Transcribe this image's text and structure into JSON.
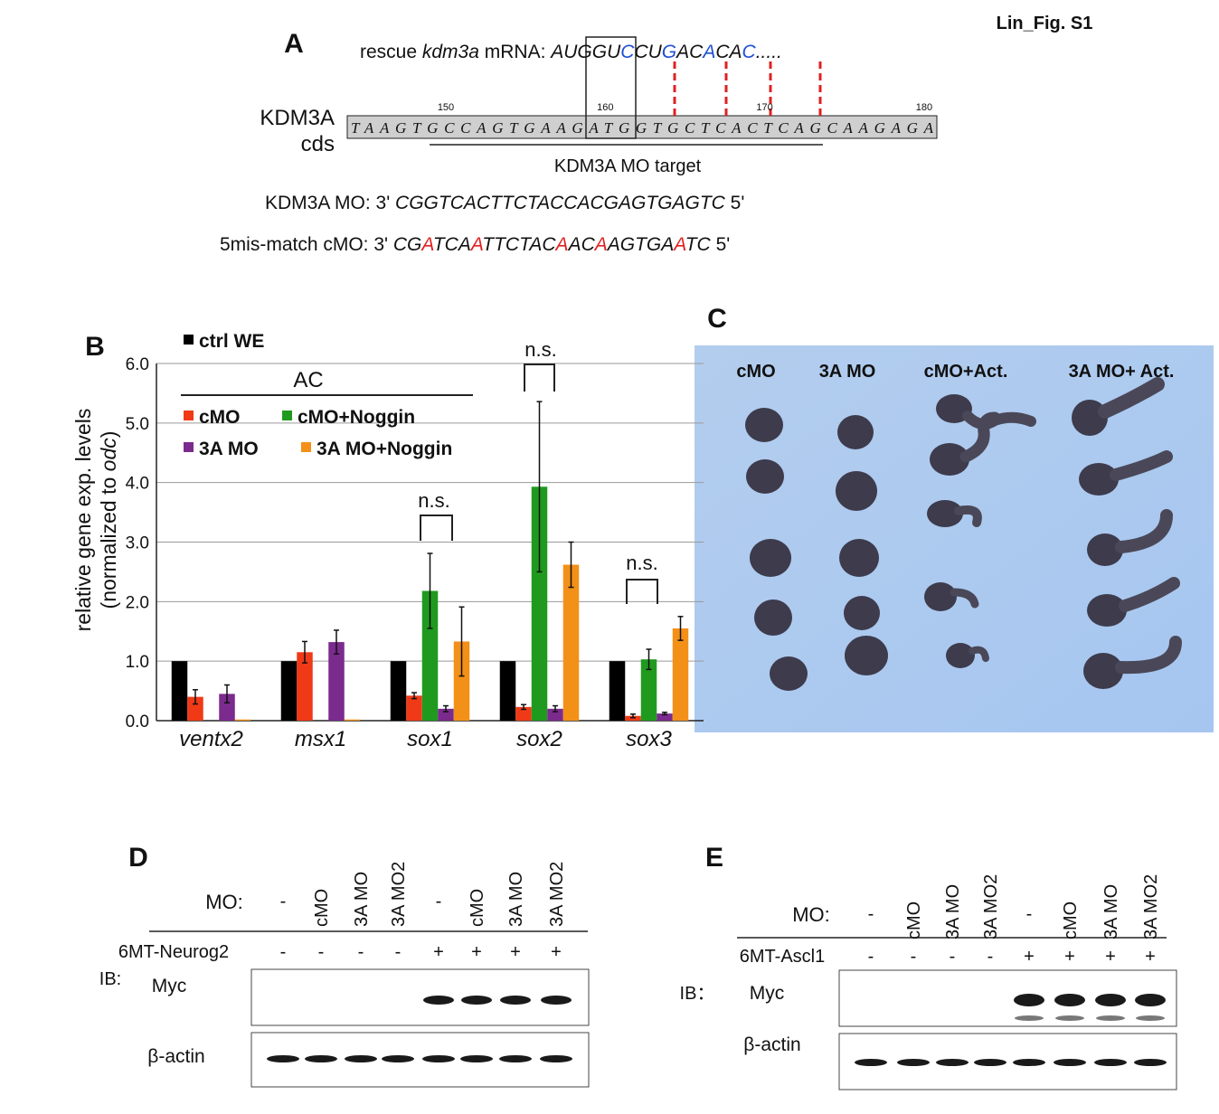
{
  "header": {
    "figure_label": "Lin_Fig. S1"
  },
  "panel_a": {
    "label": "A",
    "mrna_label": [
      "rescue ",
      "kdm3a",
      " mRNA: "
    ],
    "mrna_sequence": [
      {
        "text": "AUGGU"
      },
      {
        "text": "C",
        "color": "#1f4fd6"
      },
      {
        "text": "CU"
      },
      {
        "text": "G",
        "color": "#1f4fd6"
      },
      {
        "text": "AC"
      },
      {
        "text": "A",
        "color": "#1f4fd6"
      },
      {
        "text": "CA"
      },
      {
        "text": "C",
        "color": "#1f4fd6"
      },
      {
        "text": "....."
      }
    ],
    "cds_label": [
      "KDM3A",
      "cds"
    ],
    "cds_sequence": "TAAGTGCCAGTGAAGATGGTGCTCACTCAGCAAGAGA",
    "positions": [
      150,
      160,
      170,
      180
    ],
    "mo_target": "KDM3A MO target",
    "mo_line": {
      "label": "KDM3A MO: 3' ",
      "sequence": [
        {
          "text": "CGGTCACTTCTACCACGAGTGAGTC"
        }
      ],
      "end": " 5'"
    },
    "cmo_line": {
      "label": "5mis-match cMO: 3' ",
      "sequence": [
        {
          "text": "CG"
        },
        {
          "text": "A",
          "color": "#e02020"
        },
        {
          "text": "TCA"
        },
        {
          "text": "A",
          "color": "#e02020"
        },
        {
          "text": "TTCTAC"
        },
        {
          "text": "A",
          "color": "#e02020"
        },
        {
          "text": "AC"
        },
        {
          "text": "A",
          "color": "#e02020"
        },
        {
          "text": "AGTGA"
        },
        {
          "text": "A",
          "color": "#e02020"
        },
        {
          "text": "TC"
        }
      ],
      "end": " 5'"
    }
  },
  "chart_data": {
    "type": "bar",
    "panel_label": "B",
    "y_label": {
      "line1": "relative gene exp. levels",
      "line2": [
        "(normalized to ",
        "odc",
        ")"
      ]
    },
    "categories": [
      "ventx2",
      "msx1",
      "sox1",
      "sox2",
      "sox3"
    ],
    "series": [
      {
        "name": "ctrl WE",
        "color": "#000000",
        "values": [
          1,
          1,
          1,
          1,
          1
        ]
      },
      {
        "name": "cMO",
        "color": "#f03a17",
        "values": [
          0.4,
          1.15,
          0.42,
          0.23,
          0.08
        ],
        "errors": [
          0.12,
          0.18,
          0.05,
          0.04,
          0.03
        ]
      },
      {
        "name": "cMO+Noggin",
        "color": "#1f9a1f",
        "values": [
          0,
          0,
          2.18,
          3.93,
          1.03
        ],
        "errors": [
          null,
          null,
          0.63,
          1.43,
          0.17
        ]
      },
      {
        "name": "3A MO",
        "color": "#7b2a8e",
        "values": [
          0.45,
          1.32,
          0.2,
          0.2,
          0.12
        ],
        "errors": [
          0.15,
          0.2,
          0.05,
          0.05,
          0.02
        ]
      },
      {
        "name": "3A MO+Noggin",
        "color": "#f39018",
        "values": [
          0.02,
          0.02,
          1.33,
          2.62,
          1.55
        ],
        "errors": [
          null,
          null,
          0.58,
          0.38,
          0.2
        ]
      }
    ],
    "ylim": [
      0,
      6
    ],
    "yticks": [
      {
        "value": 0,
        "label": "0.0"
      },
      {
        "value": 1,
        "label": "1.0"
      },
      {
        "value": 2,
        "label": "2.0"
      },
      {
        "value": 3,
        "label": "3.0"
      },
      {
        "value": 4,
        "label": "4.0"
      },
      {
        "value": 5,
        "label": "5.0"
      },
      {
        "value": 6,
        "label": "6.0"
      }
    ],
    "grid": true,
    "annotations": [
      "AC",
      "n.s.",
      "n.s.",
      "n.s."
    ]
  },
  "panel_c": {
    "label": "C",
    "columns": [
      "cMO",
      "3A MO",
      "cMO+Act.",
      "3A MO+ Act."
    ]
  },
  "panel_d": {
    "label": "D",
    "mo_label": "MO:",
    "lanes": [
      "-",
      "cMO",
      "3A MO",
      "3A MO2",
      "-",
      "cMO",
      "3A MO",
      "3A MO2"
    ],
    "construct": "6MT-Neurog2",
    "construct_signs": [
      "-",
      "-",
      "-",
      "-",
      "+",
      "+",
      "+",
      "+"
    ],
    "ib_label": "IB:",
    "blots": [
      "Myc",
      "β-actin"
    ]
  },
  "panel_e": {
    "label": "E",
    "mo_label": "MO:",
    "lanes": [
      "-",
      "cMO",
      "3A MO",
      "3A MO2",
      "-",
      "cMO",
      "3A MO",
      "3A MO2"
    ],
    "construct": "6MT-Ascl1",
    "construct_signs": [
      "-",
      "-",
      "-",
      "-",
      "+",
      "+",
      "+",
      "+"
    ],
    "ib_label": "IB：",
    "blots": [
      "Myc",
      "β-actin"
    ]
  }
}
